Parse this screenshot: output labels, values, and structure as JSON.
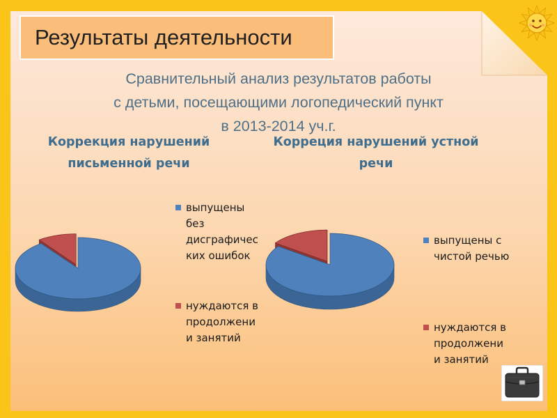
{
  "slide": {
    "title": "Результаты деятельности",
    "subtitle_lines": [
      "Сравнительный анализ результатов работы",
      "с детьми, посещающими логопедический пункт",
      "в 2013-2014 уч.г."
    ]
  },
  "icons": {
    "corner_decoration": "sun-icon",
    "bottom_right": "briefcase-icon"
  },
  "colors": {
    "page_frame": "#fac419",
    "slide_background_top": "#fde9dc",
    "slide_background_bottom": "#fbbf78",
    "title_box": "#fbbe7a",
    "chart_title": "#3f6d8e",
    "subtitle_text": "#4f6f86",
    "series_blue": "#4f81bd",
    "series_red": "#c0504d"
  },
  "chart_data": [
    {
      "type": "pie",
      "style": "3d",
      "title_lines": [
        "Коррекция нарушений",
        "письменной речи"
      ],
      "legend_position": "right",
      "series": [
        {
          "values": [
            90,
            10
          ],
          "labels": [
            [
              "выпущены",
              "без",
              "дисграфичес",
              "ких ошибок"
            ],
            [
              "нуждаются в",
              "продолжени",
              "и занятий"
            ]
          ]
        }
      ]
    },
    {
      "type": "pie",
      "style": "3d",
      "title_lines": [
        "Корреция нарушений устной",
        "речи"
      ],
      "legend_position": "right",
      "series": [
        {
          "values": [
            85,
            15
          ],
          "labels": [
            [
              "выпущены с",
              "чистой речью"
            ],
            [
              "нуждаются в",
              "продолжени",
              "и занятий"
            ]
          ]
        }
      ]
    }
  ]
}
